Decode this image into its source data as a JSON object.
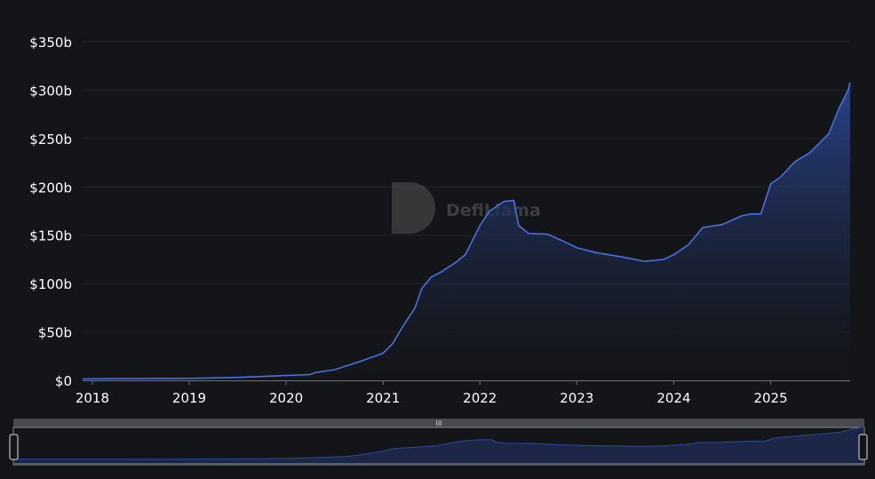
{
  "chart_data": {
    "type": "area",
    "title": "",
    "xlabel": "",
    "ylabel": "",
    "xlim": [
      2017.9,
      2025.82
    ],
    "ylim": [
      0,
      350
    ],
    "y_ticks": [
      0,
      50,
      100,
      150,
      200,
      250,
      300,
      350
    ],
    "y_tick_labels": [
      "$0",
      "$50b",
      "$100b",
      "$150b",
      "$200b",
      "$250b",
      "$300b",
      "$350b"
    ],
    "x_ticks": [
      2018,
      2019,
      2020,
      2021,
      2022,
      2023,
      2024,
      2025
    ],
    "x_tick_labels": [
      "2018",
      "2019",
      "2020",
      "2021",
      "2022",
      "2023",
      "2024",
      "2025"
    ],
    "grid": "horizontal",
    "series": [
      {
        "color": "#4a6fe0",
        "x": [
          2017.9,
          2019.0,
          2019.5,
          2020.0,
          2020.25,
          2020.3,
          2020.5,
          2020.75,
          2021.0,
          2021.1,
          2021.2,
          2021.33,
          2021.4,
          2021.5,
          2021.6,
          2021.75,
          2021.85,
          2022.0,
          2022.1,
          2022.25,
          2022.35,
          2022.4,
          2022.5,
          2022.7,
          2022.9,
          2023.0,
          2023.2,
          2023.5,
          2023.7,
          2023.9,
          2024.0,
          2024.15,
          2024.3,
          2024.5,
          2024.7,
          2024.8,
          2024.9,
          2025.0,
          2025.1,
          2025.25,
          2025.4,
          2025.5,
          2025.6,
          2025.7,
          2025.8,
          2025.82
        ],
        "y": [
          1.5,
          2,
          3,
          5,
          6,
          8,
          11,
          19,
          28,
          38,
          55,
          75,
          95,
          107,
          112,
          122,
          130,
          160,
          175,
          185,
          186,
          160,
          152,
          151,
          142,
          137,
          132,
          127,
          123,
          125,
          130,
          140,
          158,
          161,
          170,
          172,
          172,
          203,
          210,
          226,
          235,
          245,
          255,
          280,
          300,
          308
        ]
      }
    ],
    "watermark": "DefiLlama",
    "range_slider": {
      "start_fraction": 0,
      "end_fraction": 1
    }
  },
  "colors": {
    "background": "#141518",
    "line": "#4a6fe0",
    "fill_top": "#2a4690",
    "slider_fill": "#1c2748"
  }
}
